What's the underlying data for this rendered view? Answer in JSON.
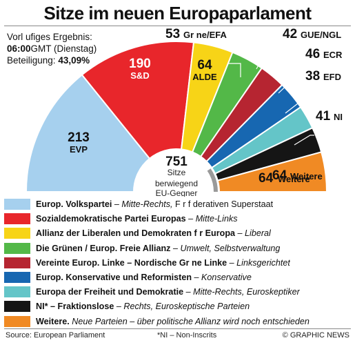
{
  "title": "Sitze im neuen Europaparlament",
  "info": {
    "line1": "Vorl  ufiges Ergebnis:",
    "time": "06:00",
    "time_suffix": "GMT (Dienstag)",
    "turnout_label": "Beteiligung: ",
    "turnout_value": "43,09%"
  },
  "center": {
    "total": "751",
    "total_label": "Sitze",
    "mostly_label": "berwiegend",
    "eu_label": "EU-Gegner"
  },
  "chart_data": {
    "type": "parliament-semicircle",
    "total": 751,
    "segments": [
      {
        "name": "EVP",
        "seats": 213,
        "color": "#a6d0ee",
        "label_value": "213",
        "label_name": "EVP"
      },
      {
        "name": "S&D",
        "seats": 190,
        "color": "#e8262b",
        "label_value": "190",
        "label_name": "S&D"
      },
      {
        "name": "ALDE",
        "seats": 64,
        "color": "#f7d417",
        "label_value": "64",
        "label_name": "ALDE"
      },
      {
        "name": "Gr ne/EFA",
        "seats": 53,
        "color": "#53b848",
        "label_value": "53",
        "label_name": "Gr  ne/EFA"
      },
      {
        "name": "GUE/NGL",
        "seats": 42,
        "color": "#b62531",
        "label_value": "42",
        "label_name": "GUE/NGL"
      },
      {
        "name": "ECR",
        "seats": 46,
        "color": "#1767b1",
        "label_value": "46",
        "label_name": "ECR"
      },
      {
        "name": "EFD",
        "seats": 38,
        "color": "#64c5c8",
        "label_value": "38",
        "label_name": "EFD"
      },
      {
        "name": "NI",
        "seats": 41,
        "color": "#151515",
        "label_value": "41",
        "label_name": "NI"
      },
      {
        "name": "Weitere",
        "seats": 64,
        "color": "#f08a24",
        "label_value": "64",
        "label_name": "Weitere"
      }
    ]
  },
  "legend": [
    {
      "color": "#a6d0ee",
      "name": "Europ. Volkspartei",
      "desc": " – Mitte-Rechts,",
      "extra": "  F  r f  derativen Superstaat"
    },
    {
      "color": "#e8262b",
      "name": "Sozialdemokratische Partei Europas",
      "desc": " – Mitte-Links",
      "extra": ""
    },
    {
      "color": "#f7d417",
      "name": "Allianz der Liberalen und Demokraten f  r Europa",
      "desc": " – Liberal",
      "extra": ""
    },
    {
      "color": "#53b848",
      "name": "Die Grünen / Europ. Freie Allianz",
      "desc": " – Umwelt, Selbstverwaltung",
      "extra": ""
    },
    {
      "color": "#b62531",
      "name": "Vereinte Europ. Linke  – Nordische Gr  ne Linke",
      "desc": " – Linksgerichtet",
      "extra": ""
    },
    {
      "color": "#1767b1",
      "name": "Europ. Konservative und Reformisten",
      "desc": " – Konservative",
      "extra": ""
    },
    {
      "color": "#64c5c8",
      "name": "Europa der Freiheit und Demokratie",
      "desc": " – Mitte-Rechts, Euroskeptiker",
      "extra": ""
    },
    {
      "color": "#151515",
      "name": "NI* – Fraktionslose",
      "desc": " – Rechts, Euroskeptische Parteien",
      "extra": ""
    },
    {
      "color": "#f08a24",
      "name": "Weitere.",
      "desc": " Neue Parteien – über politische Allianz wird noch entschieden",
      "extra": ""
    }
  ],
  "footer": {
    "source": "Source: European Parliament",
    "note": "*NI – Non-Inscrits",
    "credit": "© GRAPHIC NEWS"
  }
}
